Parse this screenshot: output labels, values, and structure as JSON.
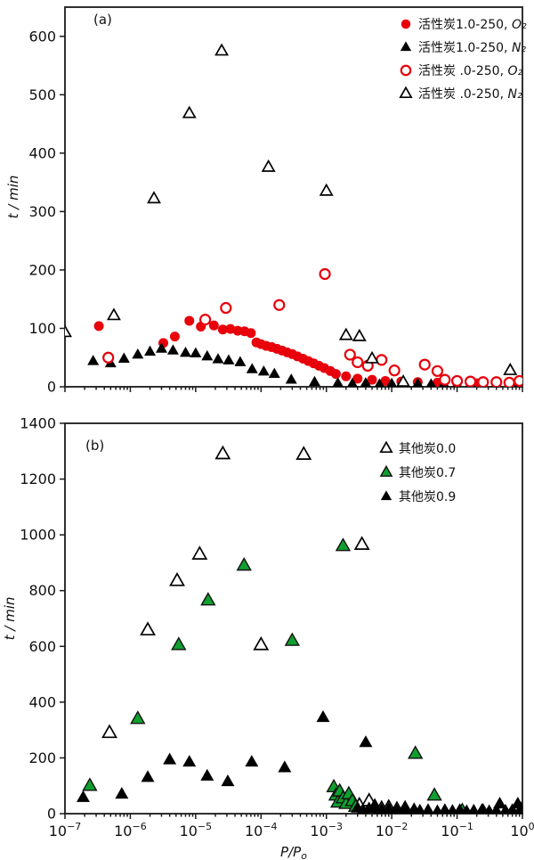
{
  "figure_title": "",
  "chart_data": [
    {
      "id": "a",
      "type": "scatter",
      "panel_label": "(a)",
      "x_scale": "log",
      "xlim_exp": [
        -7,
        0
      ],
      "ylim": [
        0,
        650
      ],
      "yticks": [
        0,
        100,
        200,
        300,
        400,
        500,
        600
      ],
      "xtick_exponents": [
        -7,
        -6,
        -5,
        -4,
        -3,
        -2,
        -1,
        0
      ],
      "show_xtick_labels": false,
      "show_xlabel": false,
      "xlabel": "P/P",
      "xlabel_sub": "o",
      "ylabel": "t / min",
      "grid": false,
      "legend_position": "top-right",
      "series": [
        {
          "label": "活性炭1.0-250, ",
          "formula": "O₂",
          "marker": "circle",
          "filled": true,
          "color": "#e8000b",
          "points": [
            [
              3.3e-07,
              104
            ],
            [
              3.2e-06,
              75
            ],
            [
              4.8e-06,
              86
            ],
            [
              8e-06,
              113
            ],
            [
              1.2e-05,
              103
            ],
            [
              1.9e-05,
              105
            ],
            [
              2.6e-05,
              98
            ],
            [
              3.4e-05,
              99
            ],
            [
              4.4e-05,
              96
            ],
            [
              5.6e-05,
              95
            ],
            [
              7e-05,
              92
            ],
            [
              8.5e-05,
              76
            ],
            [
              0.0001,
              73
            ],
            [
              0.00012,
              70
            ],
            [
              0.000145,
              68
            ],
            [
              0.000175,
              65
            ],
            [
              0.00021,
              62
            ],
            [
              0.00025,
              59
            ],
            [
              0.0003,
              56
            ],
            [
              0.00036,
              52
            ],
            [
              0.00044,
              48
            ],
            [
              0.00053,
              44
            ],
            [
              0.00064,
              40
            ],
            [
              0.00077,
              36
            ],
            [
              0.00093,
              32
            ],
            [
              0.00115,
              27
            ],
            [
              0.0014,
              22
            ],
            [
              0.002,
              18
            ],
            [
              0.003,
              14
            ],
            [
              0.005,
              12
            ],
            [
              0.008,
              10
            ],
            [
              0.014,
              9
            ],
            [
              0.025,
              8
            ],
            [
              0.05,
              7
            ],
            [
              0.1,
              7
            ],
            [
              0.2,
              6
            ],
            [
              0.4,
              6
            ],
            [
              0.7,
              5
            ],
            [
              0.95,
              6
            ]
          ]
        },
        {
          "label": "活性炭1.0-250, ",
          "formula": "N₂",
          "marker": "triangle",
          "filled": true,
          "color": "#000000",
          "points": [
            [
              2.7e-07,
              44
            ],
            [
              5e-07,
              40
            ],
            [
              8e-07,
              48
            ],
            [
              1.3e-06,
              55
            ],
            [
              2e-06,
              60
            ],
            [
              3e-06,
              65
            ],
            [
              4.5e-06,
              62
            ],
            [
              7e-06,
              58
            ],
            [
              1e-05,
              57
            ],
            [
              1.5e-05,
              52
            ],
            [
              2.2e-05,
              47
            ],
            [
              3.2e-05,
              45
            ],
            [
              4.8e-05,
              42
            ],
            [
              7.3e-05,
              30
            ],
            [
              0.00011,
              26
            ],
            [
              0.00016,
              22
            ],
            [
              0.00029,
              12
            ],
            [
              0.00066,
              8
            ],
            [
              0.0015,
              6
            ],
            [
              0.0025,
              5
            ],
            [
              0.004,
              6
            ],
            [
              0.0065,
              4
            ],
            [
              0.01,
              5
            ],
            [
              0.016,
              4
            ],
            [
              0.025,
              5
            ],
            [
              0.04,
              4
            ],
            [
              0.063,
              5
            ],
            [
              0.1,
              4
            ],
            [
              0.16,
              5
            ],
            [
              0.25,
              4
            ],
            [
              0.4,
              5
            ],
            [
              0.63,
              4
            ],
            [
              0.85,
              5
            ],
            [
              1,
              8
            ]
          ]
        },
        {
          "label": "活性炭 .0-250, ",
          "formula": "O₂",
          "marker": "circle",
          "filled": false,
          "color": "#e8000b",
          "points": [
            [
              4.6e-07,
              50
            ],
            [
              1.4e-05,
              115
            ],
            [
              2.9e-05,
              135
            ],
            [
              0.00019,
              140
            ],
            [
              0.00095,
              193
            ],
            [
              0.0023,
              55
            ],
            [
              0.003,
              42
            ],
            [
              0.0043,
              36
            ],
            [
              0.007,
              46
            ],
            [
              0.011,
              28
            ],
            [
              0.032,
              38
            ],
            [
              0.05,
              27
            ],
            [
              0.065,
              12
            ],
            [
              0.1,
              10
            ],
            [
              0.16,
              9
            ],
            [
              0.25,
              8
            ],
            [
              0.4,
              8
            ],
            [
              0.63,
              7
            ],
            [
              0.9,
              10
            ]
          ]
        },
        {
          "label": "活性炭 .0-250, ",
          "formula": "N₂",
          "marker": "triangle",
          "filled": false,
          "color": "#000000",
          "points": [
            [
              1e-07,
              93
            ],
            [
              5.6e-07,
              122
            ],
            [
              2.3e-06,
              322
            ],
            [
              8e-06,
              468
            ],
            [
              2.5e-05,
              575
            ],
            [
              0.00013,
              376
            ],
            [
              0.001,
              335
            ],
            [
              0.002,
              88
            ],
            [
              0.0032,
              86
            ],
            [
              0.005,
              48
            ],
            [
              0.015,
              8
            ],
            [
              0.65,
              28
            ]
          ]
        }
      ]
    },
    {
      "id": "b",
      "type": "scatter",
      "panel_label": "(b)",
      "x_scale": "log",
      "xlim_exp": [
        -7,
        0
      ],
      "ylim": [
        0,
        1400
      ],
      "yticks": [
        0,
        200,
        400,
        600,
        800,
        1000,
        1200,
        1400
      ],
      "xtick_exponents": [
        -7,
        -6,
        -5,
        -4,
        -3,
        -2,
        -1,
        0
      ],
      "show_xtick_labels": true,
      "show_xlabel": true,
      "xlabel": "P/P",
      "xlabel_sub": "o",
      "ylabel": "t / min",
      "grid": false,
      "legend_position": "top-right",
      "series": [
        {
          "label": "其他炭0.0",
          "formula": "",
          "marker": "triangle",
          "filled": false,
          "color": "#000000",
          "points": [
            [
              4.8e-07,
              290
            ],
            [
              1.85e-06,
              658
            ],
            [
              5.2e-06,
              835
            ],
            [
              1.15e-05,
              930
            ],
            [
              2.6e-05,
              1290
            ],
            [
              0.0001,
              605
            ],
            [
              0.00045,
              1288
            ],
            [
              0.0035,
              965
            ],
            [
              0.0022,
              60
            ],
            [
              0.0026,
              40
            ],
            [
              0.0032,
              30
            ],
            [
              0.0045,
              45
            ],
            [
              0.0055,
              25
            ],
            [
              0.007,
              18
            ],
            [
              0.009,
              22
            ],
            [
              0.012,
              15
            ],
            [
              0.016,
              18
            ]
          ]
        },
        {
          "label": "其他炭0.7",
          "formula": "",
          "marker": "triangle",
          "filled": true,
          "color": "#0f9f2f",
          "points": [
            [
              2.4e-07,
              100
            ],
            [
              1.3e-06,
              340
            ],
            [
              5.5e-06,
              605
            ],
            [
              1.55e-05,
              765
            ],
            [
              5.5e-05,
              890
            ],
            [
              0.0003,
              620
            ],
            [
              0.0018,
              960
            ],
            [
              0.0013,
              95
            ],
            [
              0.0014,
              65
            ],
            [
              0.0015,
              40
            ],
            [
              0.0016,
              80
            ],
            [
              0.0018,
              55
            ],
            [
              0.002,
              35
            ],
            [
              0.0022,
              70
            ],
            [
              0.0025,
              45
            ],
            [
              0.0028,
              25
            ],
            [
              0.023,
              215
            ],
            [
              0.045,
              65
            ],
            [
              0.12,
              10
            ],
            [
              0.25,
              8
            ]
          ]
        },
        {
          "label": "其他炭0.9",
          "formula": "",
          "marker": "triangle",
          "filled": true,
          "color": "#000000",
          "points": [
            [
              1.9e-07,
              58
            ],
            [
              7.4e-07,
              70
            ],
            [
              1.85e-06,
              130
            ],
            [
              4e-06,
              193
            ],
            [
              8e-06,
              185
            ],
            [
              1.5e-05,
              135
            ],
            [
              3.1e-05,
              115
            ],
            [
              7.2e-05,
              185
            ],
            [
              0.00023,
              165
            ],
            [
              0.00089,
              345
            ],
            [
              0.004,
              255
            ],
            [
              0.003,
              20
            ],
            [
              0.0036,
              12
            ],
            [
              0.0045,
              18
            ],
            [
              0.0055,
              25
            ],
            [
              0.007,
              12
            ],
            [
              0.009,
              16
            ],
            [
              0.012,
              10
            ],
            [
              0.016,
              14
            ],
            [
              0.022,
              15
            ],
            [
              0.027,
              10
            ],
            [
              0.036,
              12
            ],
            [
              0.05,
              8
            ],
            [
              0.065,
              12
            ],
            [
              0.085,
              9
            ],
            [
              0.11,
              12
            ],
            [
              0.14,
              8
            ],
            [
              0.18,
              10
            ],
            [
              0.24,
              12
            ],
            [
              0.31,
              8
            ],
            [
              0.4,
              10
            ],
            [
              0.45,
              35
            ],
            [
              0.55,
              10
            ],
            [
              0.7,
              12
            ],
            [
              0.85,
              35
            ],
            [
              0.95,
              18
            ],
            [
              1,
              12
            ]
          ]
        }
      ]
    }
  ]
}
